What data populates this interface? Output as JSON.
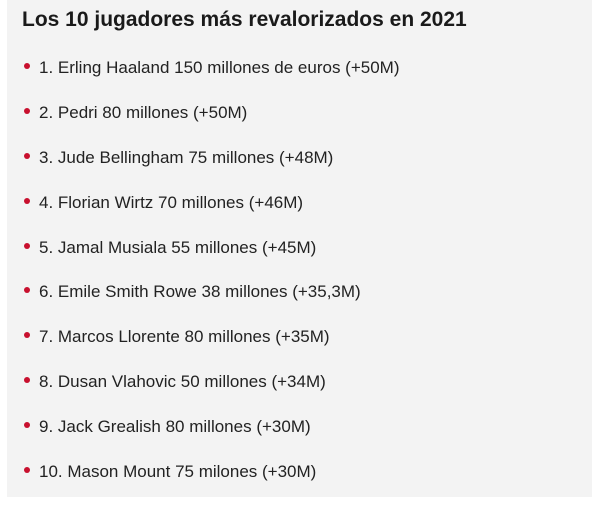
{
  "title": "Los 10 jugadores más revalorizados en 2021",
  "bullet_color": "#c8102e",
  "items": [
    "1. Erling Haaland 150 millones de euros (+50M)",
    "2. Pedri 80 millones (+50M)",
    "3. Jude Bellingham 75 millones (+48M)",
    "4. Florian Wirtz 70 millones (+46M)",
    "5. Jamal Musiala 55 millones (+45M)",
    "6. Emile Smith Rowe 38 millones (+35,3M)",
    "7. Marcos Llorente 80 millones (+35M)",
    "8. Dusan Vlahovic 50 millones (+34M)",
    "9. Jack Grealish 80 millones (+30M)",
    "10. Mason Mount 75 milones (+30M)"
  ]
}
